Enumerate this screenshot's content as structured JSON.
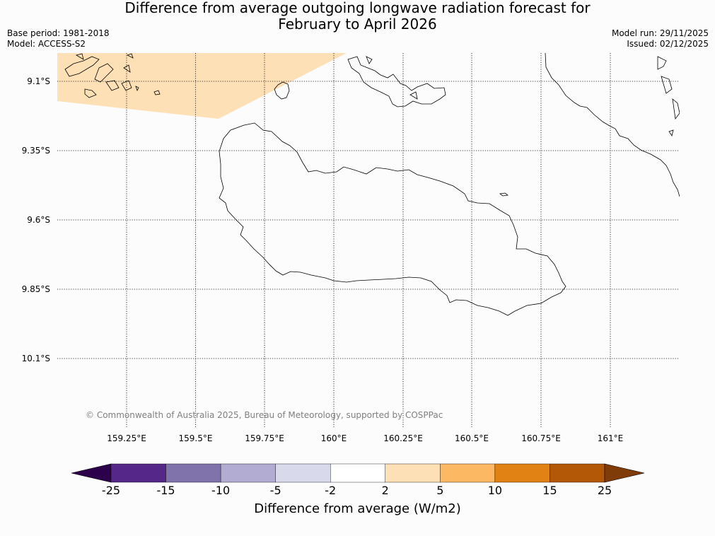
{
  "title": {
    "line1": "Difference from average outgoing longwave radiation forecast for",
    "line2": "February to April 2026"
  },
  "meta": {
    "base_period": "Base period: 1981-2018",
    "model": "Model: ACCESS-S2",
    "model_run": "Model run: 29/11/2025",
    "issued": "Issued: 02/12/2025"
  },
  "map": {
    "latitudes": [
      "9.1°S",
      "9.35°S",
      "9.6°S",
      "9.85°S",
      "10.1°S"
    ],
    "longitudes": [
      "159.25°E",
      "159.5°E",
      "159.75°E",
      "160°E",
      "160.25°E",
      "160.5°E",
      "160.75°E",
      "161°E"
    ],
    "anomaly_region": {
      "category": "2 to 5",
      "color": "#fee0b6"
    },
    "copyright": "© Commonwealth of Australia 2025, Bureau of Meteorology, supported by COSPPac"
  },
  "colorbar": {
    "label": "Difference from average (W/m2)",
    "ticks": [
      "-25",
      "-15",
      "-10",
      "-5",
      "-2",
      "2",
      "5",
      "10",
      "15",
      "25"
    ],
    "colors": [
      "#2d004b",
      "#542788",
      "#8073ac",
      "#b2abd2",
      "#d8daeb",
      "#ffffff",
      "#fee0b6",
      "#fdb863",
      "#e08214",
      "#b35806",
      "#7f3b08"
    ]
  }
}
